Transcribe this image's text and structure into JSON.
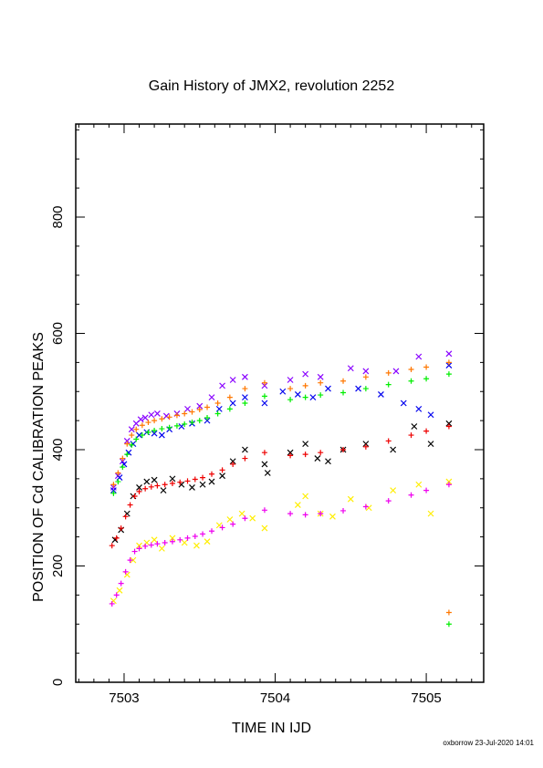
{
  "chart_data": {
    "type": "scatter",
    "title": "Gain History of JMX2, revolution 2252",
    "xlabel": "TIME IN IJD",
    "ylabel": "POSITION OF Cd CALIBRATION PEAKS",
    "xlim": [
      7502.68,
      7505.38
    ],
    "ylim": [
      0,
      960
    ],
    "xticks": [
      7503,
      7504,
      7505
    ],
    "yticks": [
      0,
      200,
      400,
      600,
      800
    ],
    "grid": false,
    "marker_shapes": {
      "+": "plus",
      "x": "cross"
    },
    "series": [
      {
        "marker": "x",
        "color": "#8800ff",
        "points": [
          [
            7502.93,
            335
          ],
          [
            7502.96,
            355
          ],
          [
            7502.99,
            380
          ],
          [
            7503.02,
            415
          ],
          [
            7503.05,
            435
          ],
          [
            7503.08,
            445
          ],
          [
            7503.11,
            452
          ],
          [
            7503.14,
            455
          ],
          [
            7503.18,
            460
          ],
          [
            7503.22,
            462
          ],
          [
            7503.28,
            458
          ],
          [
            7503.35,
            462
          ],
          [
            7503.42,
            470
          ],
          [
            7503.5,
            475
          ],
          [
            7503.58,
            490
          ],
          [
            7503.65,
            510
          ],
          [
            7503.72,
            520
          ],
          [
            7503.8,
            525
          ],
          [
            7503.93,
            510
          ],
          [
            7504.1,
            520
          ],
          [
            7504.2,
            530
          ],
          [
            7504.3,
            525
          ],
          [
            7504.5,
            540
          ],
          [
            7504.6,
            535
          ],
          [
            7504.8,
            535
          ],
          [
            7504.95,
            560
          ],
          [
            7505.15,
            565
          ]
        ]
      },
      {
        "marker": "x",
        "color": "#0000ee",
        "points": [
          [
            7502.93,
            330
          ],
          [
            7502.97,
            352
          ],
          [
            7503.0,
            375
          ],
          [
            7503.03,
            395
          ],
          [
            7503.06,
            410
          ],
          [
            7503.1,
            425
          ],
          [
            7503.15,
            430
          ],
          [
            7503.2,
            428
          ],
          [
            7503.25,
            425
          ],
          [
            7503.3,
            435
          ],
          [
            7503.38,
            440
          ],
          [
            7503.45,
            445
          ],
          [
            7503.55,
            450
          ],
          [
            7503.63,
            470
          ],
          [
            7503.72,
            480
          ],
          [
            7503.8,
            490
          ],
          [
            7503.93,
            480
          ],
          [
            7504.05,
            500
          ],
          [
            7504.15,
            495
          ],
          [
            7504.25,
            490
          ],
          [
            7504.35,
            505
          ],
          [
            7504.55,
            505
          ],
          [
            7504.7,
            495
          ],
          [
            7504.85,
            480
          ],
          [
            7504.95,
            470
          ],
          [
            7505.03,
            460
          ],
          [
            7505.15,
            545
          ]
        ]
      },
      {
        "marker": "x",
        "color": "#000000",
        "points": [
          [
            7502.94,
            245
          ],
          [
            7502.98,
            262
          ],
          [
            7503.02,
            290
          ],
          [
            7503.06,
            320
          ],
          [
            7503.1,
            335
          ],
          [
            7503.15,
            345
          ],
          [
            7503.2,
            348
          ],
          [
            7503.26,
            330
          ],
          [
            7503.32,
            350
          ],
          [
            7503.38,
            340
          ],
          [
            7503.45,
            335
          ],
          [
            7503.52,
            340
          ],
          [
            7503.58,
            345
          ],
          [
            7503.65,
            355
          ],
          [
            7503.72,
            380
          ],
          [
            7503.8,
            400
          ],
          [
            7503.93,
            375
          ],
          [
            7503.95,
            360
          ],
          [
            7504.1,
            395
          ],
          [
            7504.2,
            410
          ],
          [
            7504.28,
            385
          ],
          [
            7504.35,
            380
          ],
          [
            7504.45,
            400
          ],
          [
            7504.6,
            410
          ],
          [
            7504.78,
            400
          ],
          [
            7504.92,
            440
          ],
          [
            7505.03,
            410
          ],
          [
            7505.15,
            445
          ]
        ]
      },
      {
        "marker": "x",
        "color": "#ffee00",
        "points": [
          [
            7502.93,
            140
          ],
          [
            7502.97,
            158
          ],
          [
            7503.02,
            185
          ],
          [
            7503.06,
            210
          ],
          [
            7503.1,
            235
          ],
          [
            7503.15,
            240
          ],
          [
            7503.2,
            245
          ],
          [
            7503.25,
            230
          ],
          [
            7503.32,
            248
          ],
          [
            7503.4,
            240
          ],
          [
            7503.48,
            235
          ],
          [
            7503.55,
            242
          ],
          [
            7503.63,
            270
          ],
          [
            7503.7,
            280
          ],
          [
            7503.78,
            290
          ],
          [
            7503.85,
            282
          ],
          [
            7503.93,
            265
          ],
          [
            7504.15,
            305
          ],
          [
            7504.2,
            320
          ],
          [
            7504.3,
            290
          ],
          [
            7504.38,
            285
          ],
          [
            7504.5,
            315
          ],
          [
            7504.62,
            300
          ],
          [
            7504.78,
            330
          ],
          [
            7504.95,
            340
          ],
          [
            7505.03,
            290
          ],
          [
            7505.15,
            345
          ]
        ]
      },
      {
        "marker": "+",
        "color": "#ff7700",
        "points": [
          [
            7502.93,
            340
          ],
          [
            7502.96,
            360
          ],
          [
            7502.99,
            385
          ],
          [
            7503.02,
            410
          ],
          [
            7503.05,
            425
          ],
          [
            7503.08,
            435
          ],
          [
            7503.12,
            442
          ],
          [
            7503.16,
            447
          ],
          [
            7503.2,
            450
          ],
          [
            7503.25,
            453
          ],
          [
            7503.3,
            456
          ],
          [
            7503.35,
            459
          ],
          [
            7503.4,
            462
          ],
          [
            7503.45,
            465
          ],
          [
            7503.5,
            469
          ],
          [
            7503.55,
            473
          ],
          [
            7503.62,
            480
          ],
          [
            7503.7,
            490
          ],
          [
            7503.8,
            505
          ],
          [
            7503.93,
            515
          ],
          [
            7504.1,
            505
          ],
          [
            7504.2,
            510
          ],
          [
            7504.3,
            515
          ],
          [
            7504.45,
            518
          ],
          [
            7504.6,
            525
          ],
          [
            7504.75,
            532
          ],
          [
            7504.9,
            538
          ],
          [
            7505.0,
            542
          ],
          [
            7505.15,
            550
          ],
          [
            7505.15,
            120
          ]
        ]
      },
      {
        "marker": "+",
        "color": "#00ee00",
        "points": [
          [
            7502.93,
            325
          ],
          [
            7502.96,
            345
          ],
          [
            7502.99,
            370
          ],
          [
            7503.02,
            392
          ],
          [
            7503.05,
            408
          ],
          [
            7503.08,
            418
          ],
          [
            7503.12,
            425
          ],
          [
            7503.16,
            430
          ],
          [
            7503.2,
            433
          ],
          [
            7503.25,
            436
          ],
          [
            7503.3,
            438
          ],
          [
            7503.35,
            441
          ],
          [
            7503.4,
            444
          ],
          [
            7503.45,
            447
          ],
          [
            7503.5,
            450
          ],
          [
            7503.55,
            455
          ],
          [
            7503.62,
            462
          ],
          [
            7503.7,
            470
          ],
          [
            7503.8,
            480
          ],
          [
            7503.93,
            492
          ],
          [
            7504.1,
            486
          ],
          [
            7504.2,
            490
          ],
          [
            7504.3,
            494
          ],
          [
            7504.45,
            498
          ],
          [
            7504.6,
            505
          ],
          [
            7504.75,
            512
          ],
          [
            7504.9,
            518
          ],
          [
            7505.0,
            522
          ],
          [
            7505.15,
            530
          ],
          [
            7505.15,
            100
          ]
        ]
      },
      {
        "marker": "+",
        "color": "#ee0000",
        "points": [
          [
            7502.92,
            235
          ],
          [
            7502.95,
            248
          ],
          [
            7502.98,
            265
          ],
          [
            7503.01,
            285
          ],
          [
            7503.04,
            305
          ],
          [
            7503.07,
            320
          ],
          [
            7503.1,
            328
          ],
          [
            7503.14,
            333
          ],
          [
            7503.18,
            336
          ],
          [
            7503.22,
            338
          ],
          [
            7503.27,
            340
          ],
          [
            7503.32,
            342
          ],
          [
            7503.37,
            344
          ],
          [
            7503.42,
            346
          ],
          [
            7503.47,
            349
          ],
          [
            7503.52,
            352
          ],
          [
            7503.58,
            358
          ],
          [
            7503.65,
            365
          ],
          [
            7503.72,
            375
          ],
          [
            7503.8,
            385
          ],
          [
            7503.93,
            395
          ],
          [
            7504.1,
            390
          ],
          [
            7504.2,
            392
          ],
          [
            7504.3,
            395
          ],
          [
            7504.45,
            400
          ],
          [
            7504.6,
            405
          ],
          [
            7504.75,
            415
          ],
          [
            7504.9,
            425
          ],
          [
            7505.0,
            432
          ],
          [
            7505.15,
            440
          ]
        ]
      },
      {
        "marker": "+",
        "color": "#ee00ee",
        "points": [
          [
            7502.92,
            135
          ],
          [
            7502.95,
            150
          ],
          [
            7502.98,
            170
          ],
          [
            7503.01,
            190
          ],
          [
            7503.04,
            210
          ],
          [
            7503.07,
            225
          ],
          [
            7503.1,
            230
          ],
          [
            7503.14,
            234
          ],
          [
            7503.18,
            236
          ],
          [
            7503.22,
            238
          ],
          [
            7503.27,
            240
          ],
          [
            7503.32,
            242
          ],
          [
            7503.37,
            245
          ],
          [
            7503.42,
            248
          ],
          [
            7503.47,
            251
          ],
          [
            7503.52,
            255
          ],
          [
            7503.58,
            260
          ],
          [
            7503.65,
            266
          ],
          [
            7503.72,
            272
          ],
          [
            7503.8,
            282
          ],
          [
            7503.93,
            296
          ],
          [
            7504.1,
            290
          ],
          [
            7504.2,
            288
          ],
          [
            7504.3,
            290
          ],
          [
            7504.45,
            295
          ],
          [
            7504.6,
            302
          ],
          [
            7504.75,
            312
          ],
          [
            7504.9,
            322
          ],
          [
            7505.0,
            330
          ],
          [
            7505.15,
            340
          ]
        ]
      }
    ]
  },
  "footer": "oxborrow 23-Jul-2020 14:01"
}
